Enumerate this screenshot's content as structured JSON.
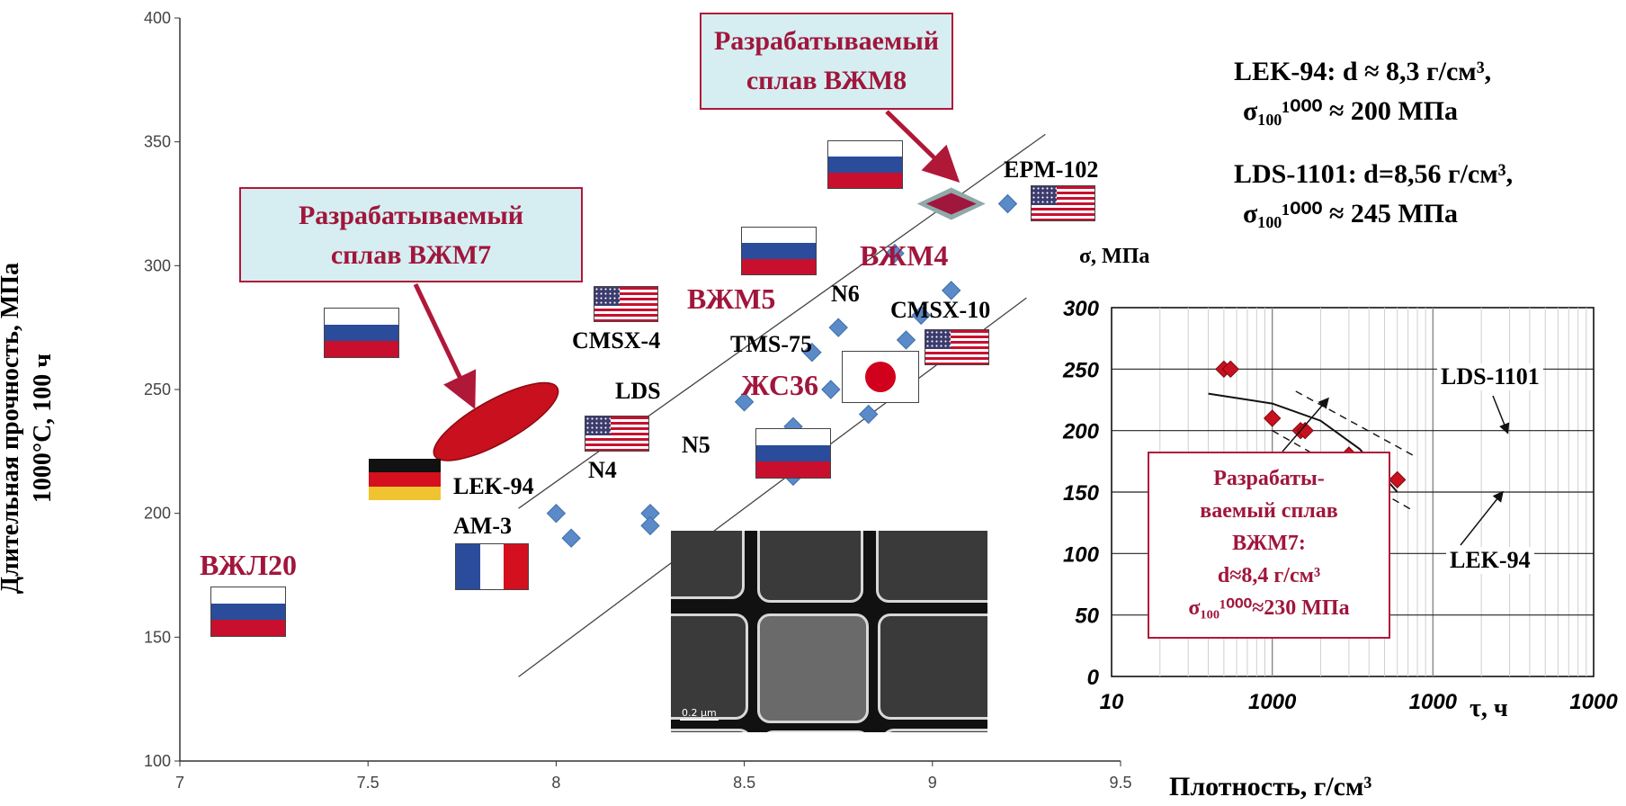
{
  "chart_data": [
    {
      "type": "scatter",
      "title": "",
      "xlabel": "Плотность,  г/см³",
      "ylabel": [
        "Длительная прочность, МПа",
        "1000°С, 100 ч"
      ],
      "xlim": [
        7,
        9.5
      ],
      "ylim": [
        100,
        400
      ],
      "x_ticks": [
        7,
        7.5,
        8,
        8.5,
        9,
        9.5
      ],
      "y_ticks": [
        100,
        150,
        200,
        250,
        300,
        350,
        400
      ],
      "series": [
        {
          "marker": "diamond",
          "color": "#5b8ac9",
          "points": [
            {
              "x": 8.0,
              "y": 200
            },
            {
              "x": 8.04,
              "y": 190
            },
            {
              "x": 8.25,
              "y": 200
            },
            {
              "x": 8.25,
              "y": 195
            },
            {
              "x": 8.5,
              "y": 245
            },
            {
              "x": 8.63,
              "y": 235
            },
            {
              "x": 8.63,
              "y": 215
            },
            {
              "x": 8.68,
              "y": 265
            },
            {
              "x": 8.73,
              "y": 250
            },
            {
              "x": 8.75,
              "y": 275
            },
            {
              "x": 8.83,
              "y": 240
            },
            {
              "x": 8.9,
              "y": 305
            },
            {
              "x": 8.93,
              "y": 270
            },
            {
              "x": 8.97,
              "y": 280
            },
            {
              "x": 9.05,
              "y": 290
            },
            {
              "x": 9.2,
              "y": 325
            }
          ]
        }
      ],
      "highlight_points": [
        {
          "name": "ВЖМ8",
          "x": 9.05,
          "y": 325,
          "color": "#a0163c"
        }
      ],
      "highlight_regions": [
        {
          "name": "ВЖМ7",
          "x": [
            7.68,
            8.0
          ],
          "y": [
            222,
            252
          ],
          "color": "#c8101e"
        }
      ],
      "trend_lines": [
        {
          "from": [
            7.9,
            202
          ],
          "to": [
            9.3,
            353
          ]
        },
        {
          "from": [
            7.9,
            134
          ],
          "to": [
            9.25,
            287
          ]
        }
      ],
      "point_labels": [
        {
          "text": "EPM-102",
          "x": 9.12,
          "y": 335,
          "color": "#000"
        },
        {
          "text": "CMSX-10",
          "x": 8.84,
          "y": 278,
          "color": "#000"
        },
        {
          "text": "N6",
          "x": 8.71,
          "y": 286,
          "color": "#000"
        },
        {
          "text": "TMS-75",
          "x": 8.5,
          "y": 263,
          "color": "#000"
        },
        {
          "text": "CMSX-4",
          "x": 7.9,
          "y": 268,
          "color": "#000"
        },
        {
          "text": "LDS",
          "x": 8.14,
          "y": 244,
          "color": "#000"
        },
        {
          "text": "N5",
          "x": 8.32,
          "y": 223,
          "color": "#000"
        },
        {
          "text": "N4",
          "x": 8.1,
          "y": 212,
          "color": "#000"
        },
        {
          "text": "LEK-94",
          "x": 7.8,
          "y": 207,
          "color": "#000"
        },
        {
          "text": "AM-3",
          "x": 7.8,
          "y": 193,
          "color": "#000"
        },
        {
          "text": "ВЖЛ20",
          "x": 7.12,
          "y": 178,
          "color": "#a0163c"
        },
        {
          "text": "ВЖМ5",
          "x": 8.44,
          "y": 280,
          "color": "#a0163c"
        },
        {
          "text": "ВЖМ4",
          "x": 8.86,
          "y": 298,
          "color": "#a0163c"
        },
        {
          "text": "ЖС36",
          "x": 8.6,
          "y": 248,
          "color": "#a0163c"
        }
      ]
    },
    {
      "type": "scatter",
      "title": "",
      "ylabel": "σ, МПа",
      "xlabel": "τ, ч",
      "x_scale": "log",
      "xlim": [
        10,
        10000
      ],
      "ylim": [
        0,
        300
      ],
      "x_tick_labels": [
        "10",
        "1000",
        "1000"
      ],
      "y_ticks": [
        0,
        50,
        100,
        150,
        200,
        250,
        300
      ],
      "series": [
        {
          "name": "ВЖМ7",
          "marker": "diamond",
          "color": "#c8101e",
          "points": [
            {
              "x": 50,
              "y": 250
            },
            {
              "x": 55,
              "y": 250
            },
            {
              "x": 100,
              "y": 210
            },
            {
              "x": 150,
              "y": 200
            },
            {
              "x": 160,
              "y": 200
            },
            {
              "x": 300,
              "y": 180
            },
            {
              "x": 600,
              "y": 160
            }
          ]
        }
      ],
      "curves": [
        {
          "name": "LDS-1101",
          "style": "dashed",
          "points": [
            [
              140,
              232
            ],
            [
              750,
              180
            ]
          ]
        },
        {
          "name": "LEK-94",
          "style": "dashed",
          "points": [
            [
              100,
              200
            ],
            [
              750,
              135
            ]
          ]
        },
        {
          "style": "solid",
          "points": [
            [
              40,
              230
            ],
            [
              100,
              222
            ],
            [
              200,
              208
            ],
            [
              350,
              185
            ],
            [
              600,
              150
            ]
          ]
        }
      ],
      "annotations": [
        "LDS-1101",
        "LEK-94"
      ]
    }
  ],
  "callouts": {
    "vzhm8": [
      "Разрабатываемый",
      "сплав  ВЖМ8"
    ],
    "vzhm7": [
      "Разрабатываемый",
      "сплав ВЖМ7"
    ],
    "inset_box": [
      "Разрабаты-",
      "ваемый сплав",
      "ВЖМ7:",
      "d≈8,4 г/см³",
      "σ₁₀₀¹⁰⁰⁰≈230 МПа"
    ]
  },
  "info_text": {
    "lek94_line1": "LEK-94:  d ≈ 8,3 г/см³,",
    "lek94_line2": "σ₁₀₀¹⁰⁰⁰ ≈ 200 МПа",
    "lds1101_line1": "LDS-1101:   d=8,56 г/см³,",
    "lds1101_line2": "σ₁₀₀¹⁰⁰⁰ ≈ 245 МПа"
  },
  "micrograph": {
    "scale_label": "0.2 µm"
  },
  "flags": [
    {
      "country": "ru"
    },
    {
      "country": "ru"
    },
    {
      "country": "ru"
    },
    {
      "country": "ru"
    },
    {
      "country": "ru"
    },
    {
      "country": "us"
    },
    {
      "country": "us"
    },
    {
      "country": "us"
    },
    {
      "country": "us"
    },
    {
      "country": "us"
    },
    {
      "country": "de"
    },
    {
      "country": "de"
    },
    {
      "country": "fr"
    },
    {
      "country": "jp"
    }
  ],
  "colors": {
    "accent": "#a0163c",
    "callout_bg": "#d6eef1",
    "diamond": "#5b8ac9",
    "vzhm7": "#c8101e"
  }
}
